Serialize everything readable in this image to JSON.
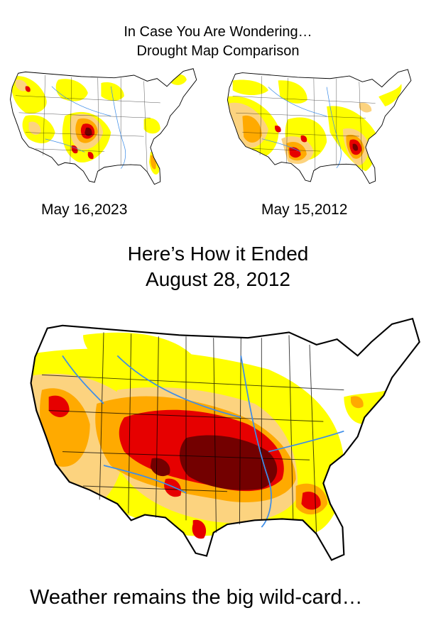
{
  "header": {
    "line1": "In Case You Are Wondering…",
    "line2": "Drought Map Comparison"
  },
  "maps": {
    "left_date": "May 16,2023",
    "right_date": "May 15,2012"
  },
  "section": {
    "line1": "Here’s How it Ended",
    "line2": "August 28, 2012"
  },
  "footer": {
    "text": "Weather remains the big wild-card…"
  },
  "legend_colors": {
    "abnormally_dry": "#ffff00",
    "moderate": "#fcd37f",
    "severe": "#ffaa00",
    "extreme": "#e60000",
    "exceptional": "#730000",
    "water": "#3d8de8",
    "none": "#ffffff"
  }
}
